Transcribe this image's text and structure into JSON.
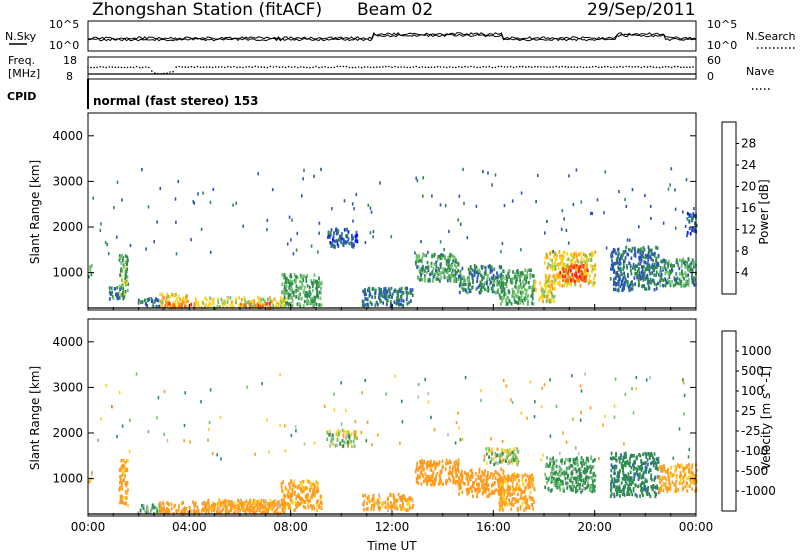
{
  "header": {
    "title": "Zhongshan Station (fitACF)",
    "beam": "Beam 02",
    "date": "29/Sep/2011"
  },
  "top_panels": {
    "nsky_label": "N.Sky",
    "nsearch_label": "N.Search",
    "nsky_ticks": [
      "10^5",
      "10^0"
    ],
    "nsearch_ticks": [
      "10^5",
      "10^0"
    ],
    "freq_label_1": "Freq.",
    "freq_label_2": "[MHz]",
    "freq_ticks": [
      "18",
      "8"
    ],
    "nave_label": "Nave",
    "nave_ticks": [
      "60",
      "0"
    ],
    "cpid_label": "CPID",
    "cpid_text": "normal (fast stereo) 153"
  },
  "chart_data": [
    {
      "type": "heatmap",
      "title": "",
      "xlabel": "Time UT",
      "ylabel": "Slant Range [km]",
      "x_ticks": [
        "00:00",
        "04:00",
        "08:00",
        "12:00",
        "16:00",
        "20:00",
        "00:00"
      ],
      "y_ticks": [
        1000,
        2000,
        3000,
        4000
      ],
      "ylim": [
        180,
        4500
      ],
      "colorbar_label": "Power [dB]",
      "colorbar_ticks": [
        4,
        8,
        12,
        16,
        20,
        24,
        28
      ],
      "colorbar_colors": [
        "#0018ff",
        "#2b55b8",
        "#2e8a4e",
        "#6cc16a",
        "#ffd21a",
        "#ff9a1a",
        "#f36b10",
        "#ff1d1d"
      ],
      "clusters": [
        {
          "t": [
            0.0,
            0.15
          ],
          "r": [
            900,
            1150
          ],
          "v": 10
        },
        {
          "t": [
            0.8,
            1.25
          ],
          "r": [
            400,
            700
          ],
          "v": 9
        },
        {
          "t": [
            1.2,
            1.55
          ],
          "r": [
            400,
            1400
          ],
          "v": 13
        },
        {
          "t": [
            1.9,
            2.8
          ],
          "r": [
            220,
            420
          ],
          "v": 9
        },
        {
          "t": [
            2.8,
            4.0
          ],
          "r": [
            220,
            520
          ],
          "v": 19
        },
        {
          "t": [
            3.0,
            4.3
          ],
          "r": [
            220,
            320
          ],
          "v": 25
        },
        {
          "t": [
            4.2,
            7.8
          ],
          "r": [
            220,
            450
          ],
          "v": 17
        },
        {
          "t": [
            6.0,
            7.2
          ],
          "r": [
            220,
            320
          ],
          "v": 26
        },
        {
          "t": [
            7.6,
            9.2
          ],
          "r": [
            250,
            950
          ],
          "v": 12
        },
        {
          "t": [
            9.4,
            10.6
          ],
          "r": [
            1550,
            1950
          ],
          "v": 6
        },
        {
          "t": [
            10.8,
            12.8
          ],
          "r": [
            250,
            650
          ],
          "v": 8
        },
        {
          "t": [
            12.9,
            14.6
          ],
          "r": [
            800,
            1400
          ],
          "v": 11
        },
        {
          "t": [
            14.6,
            16.4
          ],
          "r": [
            550,
            1150
          ],
          "v": 10
        },
        {
          "t": [
            16.2,
            17.6
          ],
          "r": [
            300,
            1050
          ],
          "v": 12
        },
        {
          "t": [
            17.6,
            18.4
          ],
          "r": [
            350,
            800
          ],
          "v": 17
        },
        {
          "t": [
            18.0,
            20.0
          ],
          "r": [
            700,
            1450
          ],
          "v": 18
        },
        {
          "t": [
            18.6,
            19.7
          ],
          "r": [
            800,
            1150
          ],
          "v": 27
        },
        {
          "t": [
            20.6,
            22.5
          ],
          "r": [
            600,
            1550
          ],
          "v": 8
        },
        {
          "t": [
            22.5,
            24.0
          ],
          "r": [
            700,
            1300
          ],
          "v": 11
        },
        {
          "t": [
            23.6,
            24.0
          ],
          "r": [
            1800,
            2300
          ],
          "v": 6
        }
      ]
    },
    {
      "type": "heatmap",
      "title": "",
      "xlabel": "Time UT",
      "ylabel": "Slant Range [km]",
      "x_ticks": [
        "00:00",
        "04:00",
        "08:00",
        "12:00",
        "16:00",
        "20:00",
        "00:00"
      ],
      "y_ticks": [
        1000,
        2000,
        3000,
        4000
      ],
      "ylim": [
        180,
        4500
      ],
      "colorbar_label": "Velocity [m s^-1]",
      "colorbar_ticks": [
        "1000",
        "500",
        "100",
        "25",
        "-25",
        "-100",
        "-500",
        "-1000"
      ],
      "colorbar_colors": [
        "#1a3fd0",
        "#2e6aa8",
        "#2e8a4e",
        "#6cc16a",
        "#b9b9b9",
        "#ffd21a",
        "#ff9a1a",
        "#f36b10",
        "#ff1d1d"
      ],
      "clusters": [
        {
          "t": [
            0.0,
            0.15
          ],
          "r": [
            900,
            1150
          ],
          "v": -150
        },
        {
          "t": [
            1.2,
            1.55
          ],
          "r": [
            400,
            1400
          ],
          "v": -200
        },
        {
          "t": [
            1.9,
            2.8
          ],
          "r": [
            220,
            420
          ],
          "v": 120
        },
        {
          "t": [
            2.8,
            7.8
          ],
          "r": [
            220,
            480
          ],
          "v": -300
        },
        {
          "t": [
            4.5,
            7.6
          ],
          "r": [
            320,
            520
          ],
          "v": -150
        },
        {
          "t": [
            7.6,
            9.2
          ],
          "r": [
            300,
            950
          ],
          "v": -200
        },
        {
          "t": [
            9.4,
            10.6
          ],
          "r": [
            1700,
            2050
          ],
          "v": 0
        },
        {
          "t": [
            10.8,
            12.8
          ],
          "r": [
            300,
            650
          ],
          "v": -150
        },
        {
          "t": [
            12.9,
            14.6
          ],
          "r": [
            850,
            1400
          ],
          "v": -250
        },
        {
          "t": [
            14.6,
            16.4
          ],
          "r": [
            600,
            1200
          ],
          "v": -300
        },
        {
          "t": [
            15.6,
            17.0
          ],
          "r": [
            1300,
            1650
          ],
          "v": 0
        },
        {
          "t": [
            16.2,
            17.6
          ],
          "r": [
            300,
            1100
          ],
          "v": -200
        },
        {
          "t": [
            18.0,
            20.0
          ],
          "r": [
            700,
            1450
          ],
          "v": 150
        },
        {
          "t": [
            20.6,
            22.5
          ],
          "r": [
            600,
            1550
          ],
          "v": 400
        },
        {
          "t": [
            22.5,
            24.0
          ],
          "r": [
            700,
            1300
          ],
          "v": -150
        }
      ]
    }
  ]
}
